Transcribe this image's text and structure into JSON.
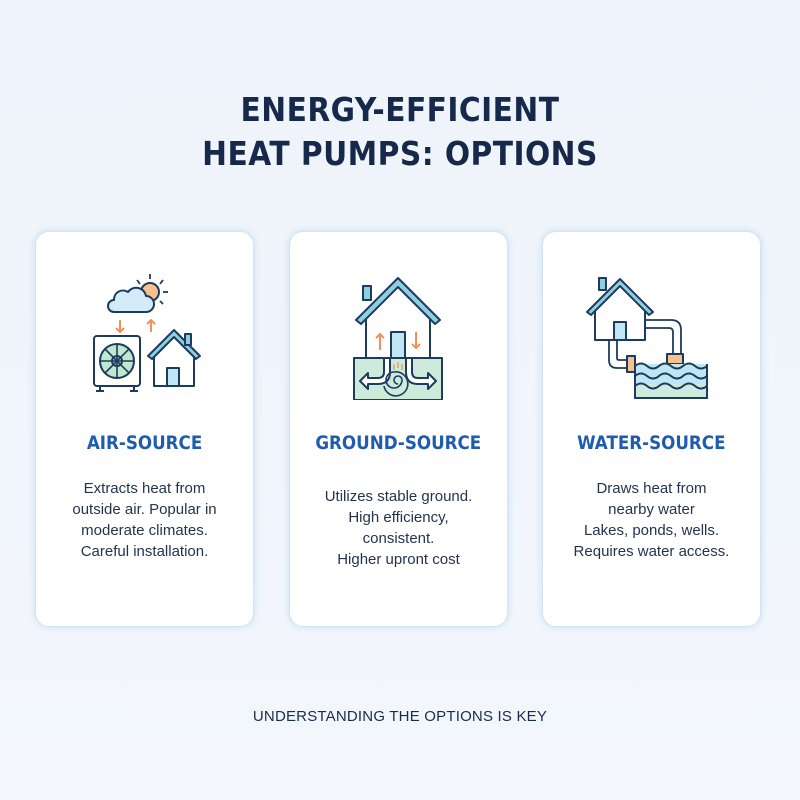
{
  "title": {
    "line1": "ENERGY-EFFICIENT",
    "line2": "HEAT PUMPS: OPTIONS"
  },
  "cards": [
    {
      "title": "AIR-SOURCE",
      "icon": "air-source-heat-pump-icon",
      "lines": [
        "Extracts heat from",
        "outside air. Popular in",
        "moderate climates.",
        "Careful installation."
      ]
    },
    {
      "title": "GROUND-SOURCE",
      "icon": "ground-source-heat-pump-icon",
      "lines": [
        "Utilizes stable ground.",
        "High efficiency,",
        "consistent.",
        "Higher upront cost"
      ]
    },
    {
      "title": "WATER-SOURCE",
      "icon": "water-source-heat-pump-icon",
      "lines": [
        "Draws heat from",
        "nearby water",
        "Lakes, ponds, wells.",
        "Requires water access."
      ]
    }
  ],
  "footer": "UNDERSTANDING THE OPTIONS IS KEY",
  "colors": {
    "title": "#17294a",
    "accent": "#1f5caf",
    "icon_stroke": "#1d3b5e",
    "arrow": "#f0915a",
    "roof": "#8fd0e0",
    "ground": "#cdeadb",
    "water": "#bfe6f3"
  }
}
